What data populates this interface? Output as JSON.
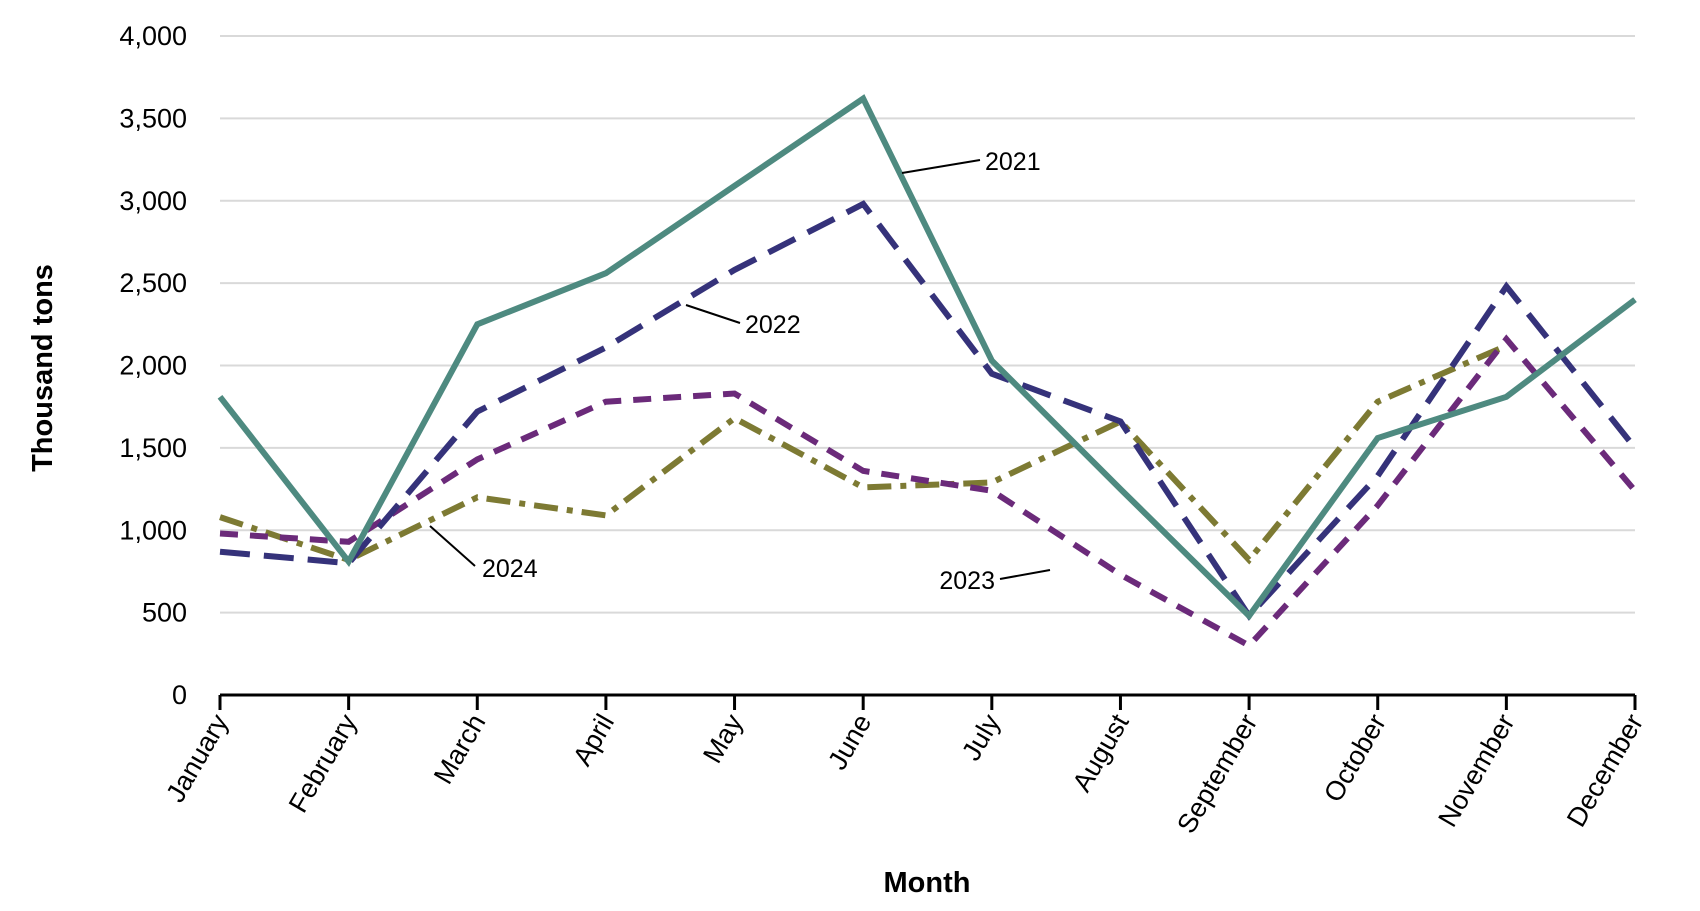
{
  "chart_data": {
    "type": "line",
    "title": "",
    "xlabel": "Month",
    "ylabel": "Thousand tons",
    "ylim": [
      0,
      4000
    ],
    "yticks": [
      0,
      500,
      1000,
      1500,
      2000,
      2500,
      3000,
      3500,
      4000
    ],
    "ytick_labels": [
      "0",
      "500",
      "1,000",
      "1,500",
      "2,000",
      "2,500",
      "3,000",
      "3,500",
      "4,000"
    ],
    "grid": true,
    "legend": "none (series labeled inline with callouts)",
    "categories": [
      "January",
      "February",
      "March",
      "April",
      "May",
      "June",
      "July",
      "August",
      "September",
      "October",
      "November",
      "December"
    ],
    "series": [
      {
        "name": "2021",
        "color": "#4e8a80",
        "style": "solid",
        "values": [
          1810,
          810,
          2250,
          2560,
          3090,
          3620,
          2030,
          1250,
          480,
          1560,
          1810,
          2400
        ]
      },
      {
        "name": "2022",
        "color": "#35327a",
        "style": "dashed",
        "values": [
          870,
          800,
          1720,
          2110,
          2580,
          2980,
          1950,
          1660,
          480,
          1330,
          2480,
          1500
        ]
      },
      {
        "name": "2023",
        "color": "#6b2a7a",
        "style": "short-dashed",
        "values": [
          980,
          930,
          1430,
          1780,
          1830,
          1360,
          1240,
          730,
          300,
          1150,
          2160,
          1240
        ]
      },
      {
        "name": "2024",
        "color": "#7d7a33",
        "style": "dash-dot",
        "values": [
          1080,
          820,
          1200,
          1090,
          1680,
          1260,
          1290,
          1660,
          820,
          1780,
          2120,
          null
        ]
      }
    ],
    "annotations": [
      {
        "text": "2021",
        "series": "2021"
      },
      {
        "text": "2022",
        "series": "2022"
      },
      {
        "text": "2023",
        "series": "2023"
      },
      {
        "text": "2024",
        "series": "2024"
      }
    ]
  }
}
